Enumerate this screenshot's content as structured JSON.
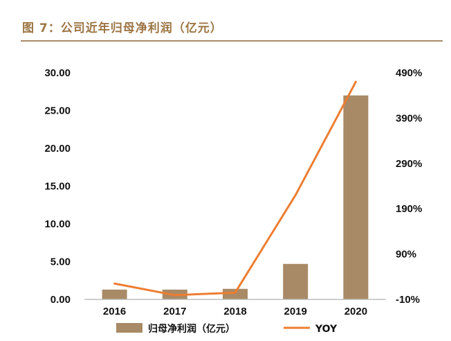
{
  "figure_title": "图 7：公司近年归母净利润（亿元）",
  "colors": {
    "bar": "#a88a66",
    "line": "#ed7d31",
    "title": "#9c7544",
    "axis": "#111111"
  },
  "chart_data": {
    "type": "bar",
    "categories": [
      "2016",
      "2017",
      "2018",
      "2019",
      "2020"
    ],
    "series": [
      {
        "name": "归母净利润（亿元）",
        "type": "bar",
        "axis": "left",
        "values": [
          1.3,
          1.3,
          1.4,
          4.7,
          27.0
        ]
      },
      {
        "name": "YOY",
        "type": "line",
        "axis": "right",
        "values": [
          25,
          -0.5,
          5,
          220,
          470
        ]
      }
    ],
    "y_left": {
      "min": 0,
      "max": 30,
      "ticks": [
        "0.00",
        "5.00",
        "10.00",
        "15.00",
        "20.00",
        "25.00",
        "30.00"
      ]
    },
    "y_right": {
      "min": -10,
      "max": 490,
      "ticks": [
        "-10%",
        "90%",
        "190%",
        "290%",
        "390%",
        "490%"
      ]
    },
    "legend_position": "bottom"
  }
}
